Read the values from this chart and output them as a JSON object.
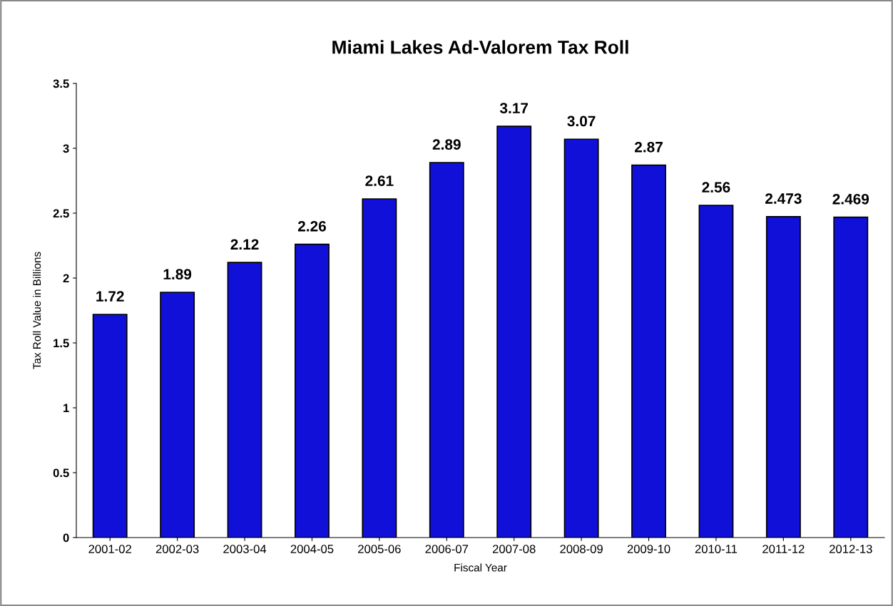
{
  "chart_data": {
    "type": "bar",
    "title": "Miami Lakes Ad-Valorem Tax Roll",
    "xlabel": "Fiscal Year",
    "ylabel": "Tax Roll Value in Billions",
    "categories": [
      "2001-02",
      "2002-03",
      "2003-04",
      "2004-05",
      "2005-06",
      "2006-07",
      "2007-08",
      "2008-09",
      "2009-10",
      "2010-11",
      "2011-12",
      "2012-13"
    ],
    "values": [
      1.72,
      1.89,
      2.12,
      2.26,
      2.61,
      2.89,
      3.17,
      3.07,
      2.87,
      2.56,
      2.473,
      2.469
    ],
    "color": "#1010d8",
    "ylim": [
      0,
      3.5
    ],
    "yticks": [
      0,
      0.5,
      1,
      1.5,
      2,
      2.5,
      3,
      3.5
    ],
    "grid": false,
    "data_labels": true
  }
}
